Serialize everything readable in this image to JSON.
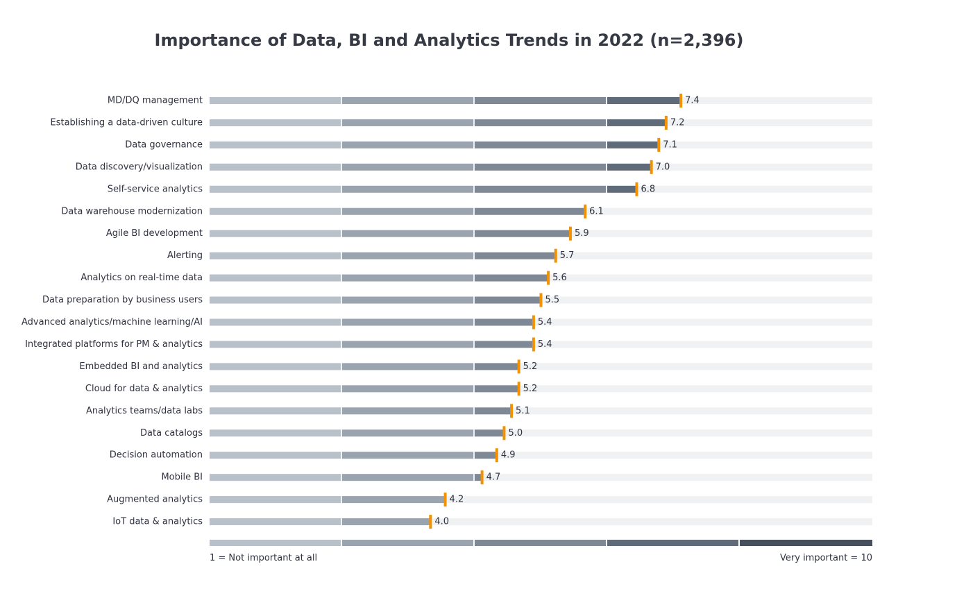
{
  "chart_data": {
    "type": "bar",
    "title": "Importance of Data, BI and Analytics Trends in 2022 (n=2,396)",
    "categories": [
      "MD/DQ management",
      "Establishing a data-driven culture",
      "Data governance",
      "Data discovery/visualization",
      "Self-service analytics",
      "Data warehouse modernization",
      "Agile BI development",
      "Alerting",
      "Analytics on real-time data",
      "Data preparation by business users",
      "Advanced analytics/machine learning/AI",
      "Integrated platforms for PM & analytics",
      "Embedded BI and analytics",
      "Cloud for data & analytics",
      "Analytics teams/data labs",
      "Data catalogs",
      "Decision automation",
      "Mobile BI",
      "Augmented analytics",
      "IoT data & analytics"
    ],
    "values": [
      7.4,
      7.2,
      7.1,
      7.0,
      6.8,
      6.1,
      5.9,
      5.7,
      5.6,
      5.5,
      5.4,
      5.4,
      5.2,
      5.2,
      5.1,
      5.0,
      4.9,
      4.7,
      4.2,
      4.0
    ],
    "value_labels": [
      "7.4",
      "7.2",
      "7.1",
      "7.0",
      "6.8",
      "6.1",
      "5.9",
      "5.7",
      "5.6",
      "5.5",
      "5.4",
      "5.4",
      "5.2",
      "5.2",
      "5.1",
      "5.0",
      "4.9",
      "4.7",
      "4.2",
      "4.0"
    ],
    "xlim": [
      1,
      10
    ],
    "scale_min_label": "1 = Not important at all",
    "scale_max_label": "Very important = 10",
    "grid": false,
    "colors": {
      "track": "#f0f1f2",
      "segments": [
        "#b8c0c9",
        "#9aa4ae",
        "#7f8995",
        "#5f6b78",
        "#45505c"
      ],
      "marker": "#f39200",
      "text": "#2f3340"
    }
  }
}
